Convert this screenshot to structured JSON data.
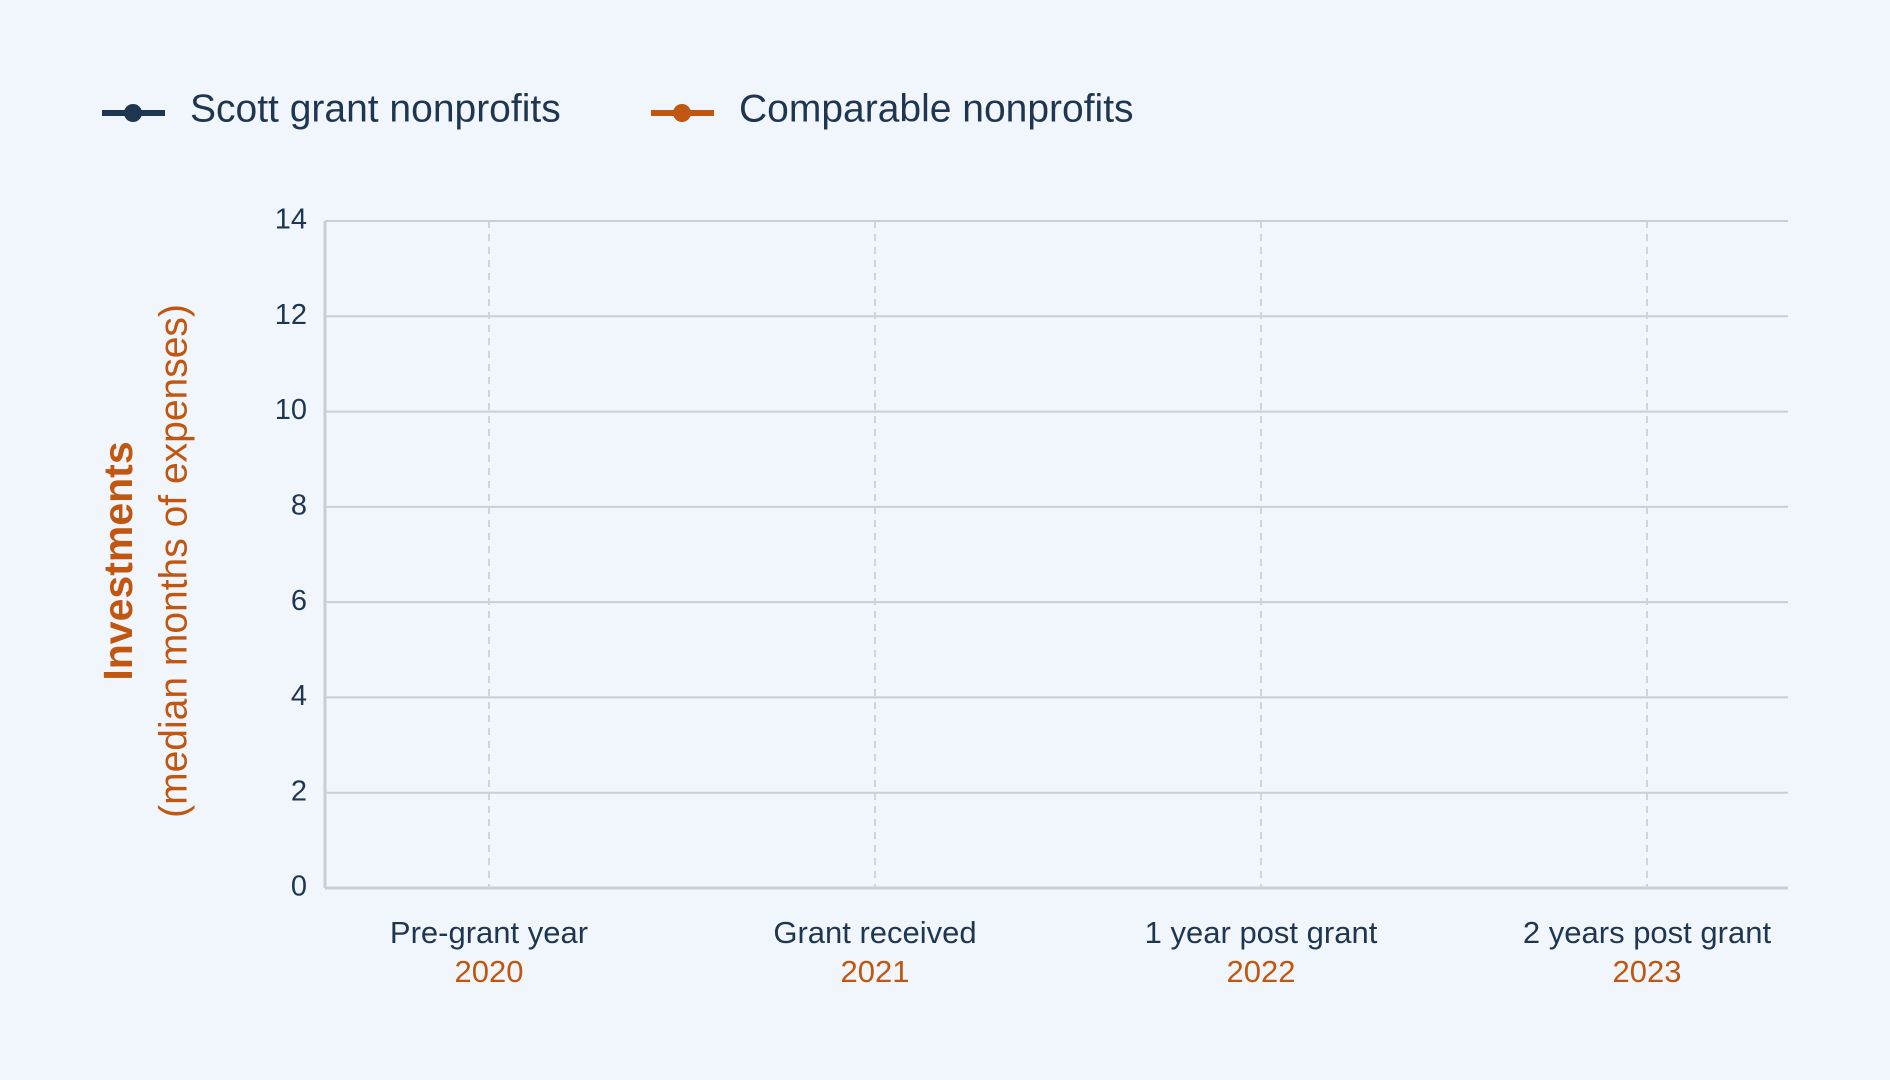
{
  "chart_data": {
    "type": "line",
    "ylabel": "Investments",
    "ylabel_sub": "(median months of expenses)",
    "categories": [
      "Pre-grant year",
      "Grant received",
      "1 year post grant",
      "2 years post grant"
    ],
    "years": [
      "2020",
      "2021",
      "2022",
      "2023"
    ],
    "series": [
      {
        "name": "Scott grant nonprofits",
        "color": "#1f3650",
        "values": [
          null,
          null,
          null,
          null
        ]
      },
      {
        "name": "Comparable nonprofits",
        "color": "#c0560f",
        "values": [
          null,
          null,
          null,
          null
        ]
      }
    ],
    "ylim": [
      0,
      14
    ],
    "yticks": [
      0,
      2,
      4,
      6,
      8,
      10,
      12,
      14
    ],
    "grid": true
  }
}
